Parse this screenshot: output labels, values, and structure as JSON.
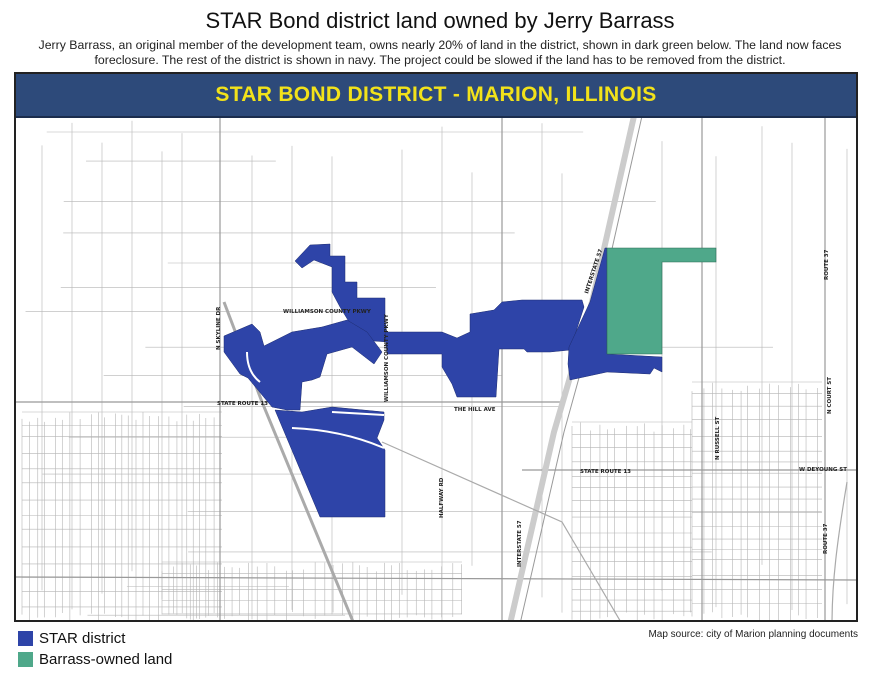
{
  "header": {
    "title": "STAR Bond district land owned by Jerry Barrass",
    "subtitle": "Jerry Barrass, an original member of the development team, owns nearly 20% of land in the district, shown in dark green below. The land now faces foreclosure. The rest of the district is shown in navy. The project could be slowed if the land has to be removed from the district."
  },
  "map": {
    "banner": "STAR BOND DISTRICT - MARION, ILLINOIS",
    "colors": {
      "star_district": "#2e44a8",
      "barrass_land": "#4fa88a",
      "banner_bg": "#2d4a7a",
      "banner_text": "#f2e21a"
    },
    "labels": {
      "skyline": "N SKYLINE DR",
      "wcp1": "WILLIAMSON COUNTY PKWY",
      "wcp2": "WILLIAMSON COUNTY PKWY",
      "sr13_west": "STATE ROUTE 13",
      "hill": "THE HILL AVE",
      "sr13_east": "STATE ROUTE 13",
      "halfway": "HALFWAY RD",
      "i57_south": "INTERSTATE 57",
      "i57_north": "INTERSTATE 57",
      "russell": "N RUSSELL ST",
      "deyoung": "W DEYOUNG ST",
      "court": "N COURT ST",
      "route37_north": "ROUTE 37",
      "route37_south": "ROUTE 37"
    }
  },
  "legend": [
    {
      "label": "STAR district",
      "color": "#2e44a8"
    },
    {
      "label": "Barrass-owned land",
      "color": "#4fa88a"
    }
  ],
  "source": "Map source: city of Marion planning documents"
}
